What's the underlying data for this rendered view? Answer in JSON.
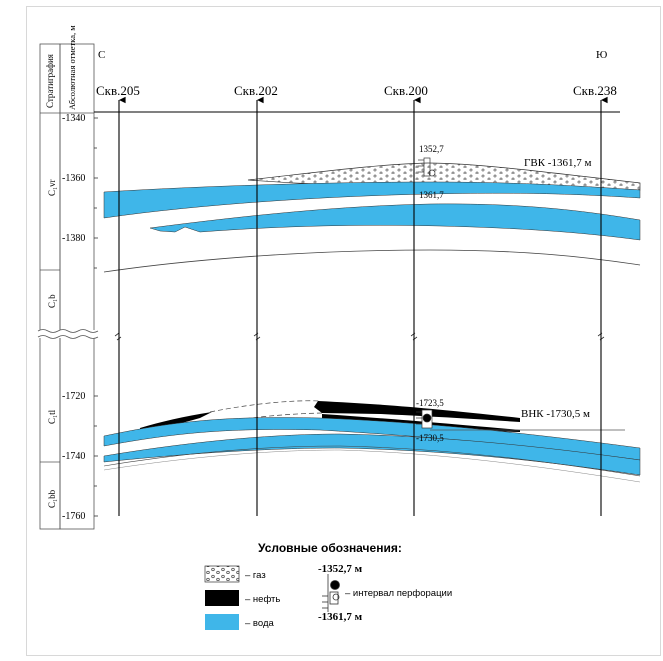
{
  "header": {
    "stratigraphy_label": "Стратиграфия",
    "elevation_label": "Абсолютная отметка, м",
    "north": "С",
    "south": "Ю"
  },
  "wells": [
    {
      "name": "Скв.205"
    },
    {
      "name": "Скв.202"
    },
    {
      "name": "Скв.200"
    },
    {
      "name": "Скв.238"
    }
  ],
  "depth_ticks_upper": [
    "-1340",
    "-1360",
    "-1380"
  ],
  "depth_ticks_lower": [
    "-1720",
    "-1740",
    "-1760"
  ],
  "stratigraphy": [
    {
      "label": "C₁vr"
    },
    {
      "label": "C₁b"
    },
    {
      "label": "C₁tl"
    },
    {
      "label": "C₁bb"
    }
  ],
  "annotations": {
    "gas_top": "1352,7",
    "gwc_depth": "1361,7",
    "gwc_label": "ГВК -1361,7 м",
    "oil_top": "-1723,5",
    "owc_depth": "-1730,5",
    "owc_label": "ВНК -1730,5 м"
  },
  "legend": {
    "title": "Условные обозначения:",
    "items": [
      {
        "label": "– газ"
      },
      {
        "label": "– нефть"
      },
      {
        "label": "– вода"
      }
    ],
    "perf_top": "-1352,7 м",
    "perf_label": "– интервал перфорации",
    "perf_bottom": "-1361,7 м"
  },
  "colors": {
    "water": "#3fb6e9",
    "oil": "#000000",
    "gas_fill": "#ffffff",
    "line": "#333333"
  }
}
